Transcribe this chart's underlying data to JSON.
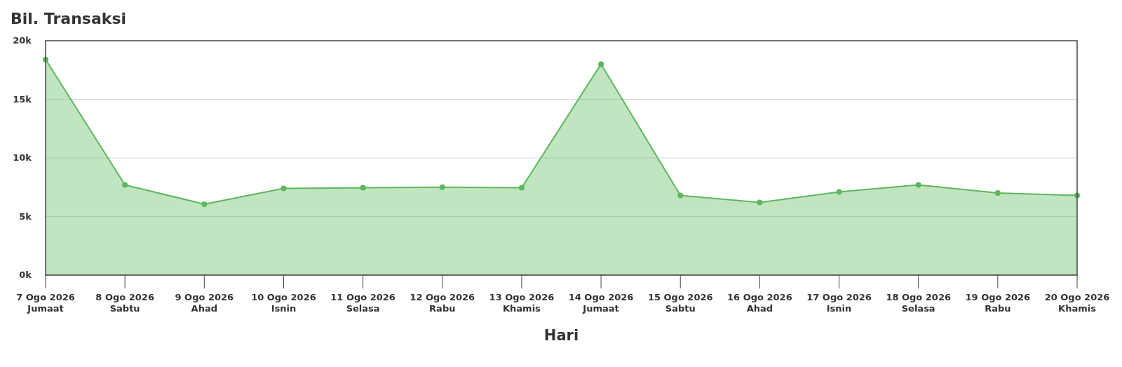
{
  "chart_data": {
    "type": "area",
    "title": "Bil. Transaksi",
    "xlabel": "Hari",
    "categories": [
      "7 Ogo 2026\nJumaat",
      "8 Ogo 2026\nSabtu",
      "9 Ogo 2026\nAhad",
      "10 Ogo 2026\nIsnin",
      "11 Ogo 2026\nSelasa",
      "12 Ogo 2026\nRabu",
      "13 Ogo 2026\nKhamis",
      "14 Ogo 2026\nJumaat",
      "15 Ogo 2026\nSabtu",
      "16 Ogo 2026\nAhad",
      "17 Ogo 2026\nIsnin",
      "18 Ogo 2026\nSelasa",
      "19 Ogo 2026\nRabu",
      "20 Ogo 2026\nKhamis"
    ],
    "series": [
      {
        "color": "#5cb85c",
        "values": [
          18400,
          7700,
          6050,
          7400,
          7450,
          7500,
          7450,
          18000,
          6800,
          6200,
          7100,
          7700,
          7000,
          6800
        ]
      }
    ],
    "ylim": [
      0,
      20000
    ],
    "yticks": [
      {
        "value": 0,
        "label": "0k"
      },
      {
        "value": 5000,
        "label": "5k"
      },
      {
        "value": 10000,
        "label": "10k"
      },
      {
        "value": 15000,
        "label": "15k"
      },
      {
        "value": 20000,
        "label": "20k"
      }
    ],
    "grid": "y",
    "marker": "circle"
  }
}
